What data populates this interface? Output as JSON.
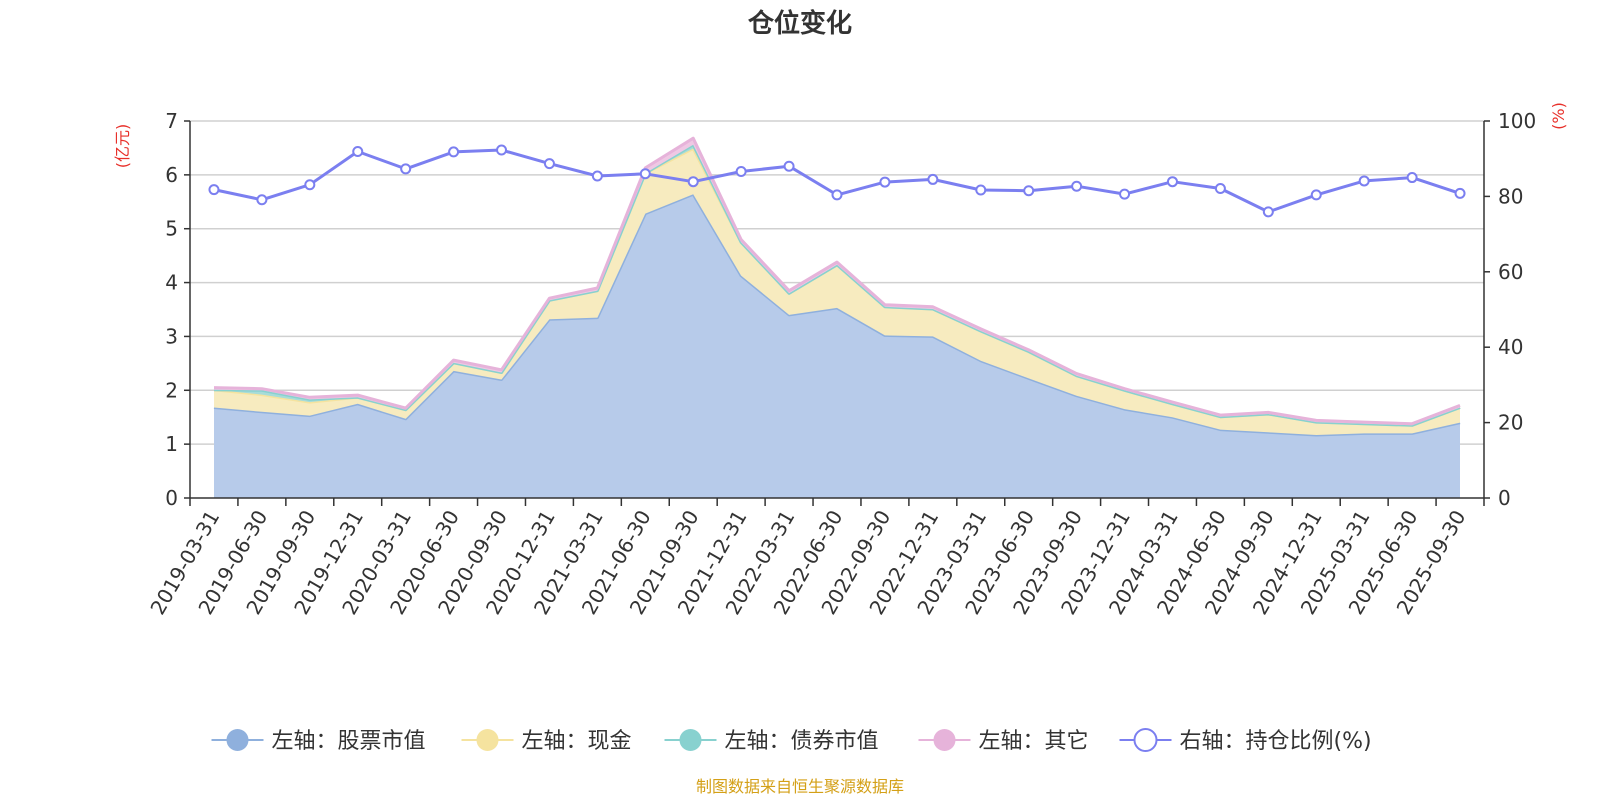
{
  "chart_data": {
    "type": "area",
    "title": "仓位变化",
    "left_axis": {
      "unit": "(亿元)",
      "range": [
        0,
        7
      ],
      "ticks": [
        0,
        1,
        2,
        3,
        4,
        5,
        6,
        7
      ]
    },
    "right_axis": {
      "unit": "(%)",
      "range": [
        0,
        100
      ],
      "ticks": [
        0,
        20,
        40,
        60,
        80,
        100
      ]
    },
    "categories": [
      "2019-03-31",
      "2019-06-30",
      "2019-09-30",
      "2019-12-31",
      "2020-03-31",
      "2020-06-30",
      "2020-09-30",
      "2020-12-31",
      "2021-03-31",
      "2021-06-30",
      "2021-09-30",
      "2021-12-31",
      "2022-03-31",
      "2022-06-30",
      "2022-09-30",
      "2022-12-31",
      "2023-03-31",
      "2023-06-30",
      "2023-09-30",
      "2023-12-31",
      "2024-03-31",
      "2024-06-30",
      "2024-09-30",
      "2024-12-31",
      "2025-03-31",
      "2025-06-30",
      "2025-09-30"
    ],
    "series": [
      {
        "name": "左轴：股票市值",
        "axis": "left",
        "kind": "stacked-area",
        "color": "#8fb0dd",
        "fill": "#b7cbea",
        "values": [
          1.68,
          1.6,
          1.53,
          1.75,
          1.47,
          2.36,
          2.2,
          3.32,
          3.35,
          5.28,
          5.64,
          4.13,
          3.4,
          3.53,
          3.02,
          3.0,
          2.55,
          2.22,
          1.9,
          1.65,
          1.5,
          1.27,
          1.22,
          1.17,
          1.2,
          1.2,
          1.4
        ]
      },
      {
        "name": "左轴：现金",
        "axis": "left",
        "kind": "stacked-area",
        "color": "#f5e39f",
        "fill": "#f7ebbf",
        "values": [
          0.33,
          0.32,
          0.25,
          0.12,
          0.17,
          0.15,
          0.13,
          0.35,
          0.5,
          0.75,
          0.85,
          0.62,
          0.4,
          0.8,
          0.53,
          0.51,
          0.55,
          0.5,
          0.37,
          0.35,
          0.25,
          0.24,
          0.34,
          0.24,
          0.18,
          0.15,
          0.28
        ]
      },
      {
        "name": "左轴：债券市值",
        "axis": "left",
        "kind": "stacked-area",
        "color": "#88d1cf",
        "fill": "#a7dcd9",
        "values": [
          0.0,
          0.08,
          0.05,
          0.0,
          0.0,
          0.0,
          0.0,
          0.0,
          0.0,
          0.0,
          0.07,
          0.0,
          0.0,
          0.0,
          0.0,
          0.0,
          0.0,
          0.0,
          0.0,
          0.0,
          0.0,
          0.0,
          0.0,
          0.0,
          0.0,
          0.0,
          0.0
        ]
      },
      {
        "name": "左轴：其它",
        "axis": "left",
        "kind": "stacked-area",
        "color": "#e6b3da",
        "fill": "#efc8e4",
        "values": [
          0.04,
          0.03,
          0.04,
          0.04,
          0.03,
          0.05,
          0.05,
          0.04,
          0.05,
          0.1,
          0.12,
          0.05,
          0.05,
          0.05,
          0.04,
          0.04,
          0.04,
          0.03,
          0.04,
          0.03,
          0.03,
          0.03,
          0.03,
          0.03,
          0.03,
          0.03,
          0.04
        ]
      },
      {
        "name": "右轴：持仓比例(%)",
        "axis": "right",
        "kind": "line",
        "color": "#7b7ff0",
        "values": [
          81.8,
          79.1,
          83.1,
          91.9,
          87.3,
          91.8,
          92.3,
          88.7,
          85.4,
          86.0,
          83.9,
          86.6,
          88.0,
          80.4,
          83.8,
          84.5,
          81.7,
          81.5,
          82.7,
          80.6,
          83.9,
          82.1,
          75.9,
          80.4,
          84.1,
          85.0,
          80.8
        ]
      }
    ]
  },
  "source_note": "制图数据来自恒生聚源数据库",
  "colors": {
    "axis": "#333333",
    "grid": "#d0d0d0",
    "unit_label": "#e8302a",
    "source": "#d4a017"
  }
}
